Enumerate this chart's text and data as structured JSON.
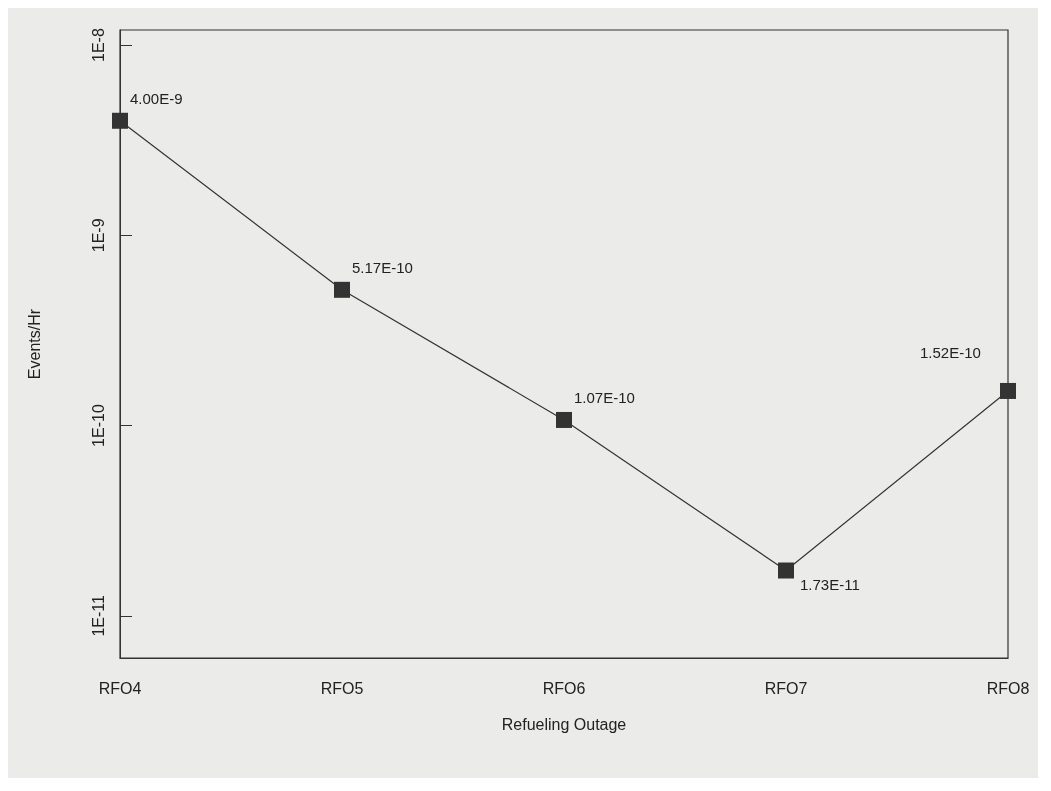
{
  "chart_data": {
    "type": "line",
    "xlabel": "Refueling Outage",
    "ylabel": "Events/Hr",
    "categories": [
      "RFO4",
      "RFO5",
      "RFO6",
      "RFO7",
      "RFO8"
    ],
    "series": [
      {
        "color": "#333333",
        "values": [
          4e-09,
          5.17e-10,
          1.07e-10,
          1.73e-11,
          1.52e-10
        ],
        "value_labels": [
          "4.00E-9",
          "5.17E-10",
          "1.07E-10",
          "1.73E-11",
          "1.52E-10"
        ]
      }
    ],
    "log": "y",
    "ylim": [
      6e-12,
      1.2e-08
    ],
    "yticks": [
      {
        "value": 1e-11,
        "label": "1E-11"
      },
      {
        "value": 1e-10,
        "label": "1E-10"
      },
      {
        "value": 1e-09,
        "label": "1E-9"
      },
      {
        "value": 1e-08,
        "label": "1E-8"
      }
    ],
    "marker": "square",
    "line_style": "solid",
    "grid": false
  }
}
